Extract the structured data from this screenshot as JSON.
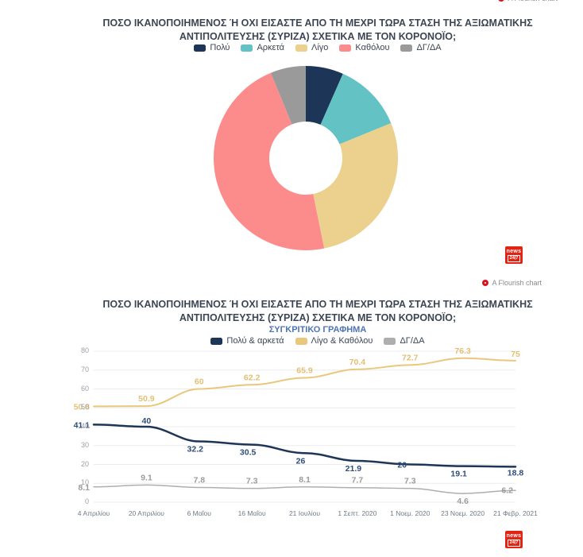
{
  "attribution_label": "A Flourish chart",
  "logo": {
    "top": "news",
    "bottom": "24|7"
  },
  "chart_data": [
    {
      "type": "pie",
      "donut": true,
      "title": "ΠΟΣΟ ΙΚΑΝΟΠΟΙΗΜΕΝΟΣ Ή ΟΧΙ ΕΙΣΑΣΤΕ ΑΠΟ ΤΗ ΜΕΧΡΙ ΤΩΡΑ ΣΤΑΣΗ ΤΗΣ ΑΞΙΩΜΑΤΙΚΗΣ ΑΝΤΙΠΟΛΙΤΕΥΣΗΣ (ΣΥΡΙΖΑ) ΣΧΕΤΙΚΑ ΜΕ ΤΟΝ ΚΟΡΟΝΟΪΟ;",
      "title_lines": [
        "ΠΟΣΟ ΙΚΑΝΟΠΟΙΗΜΕΝΟΣ Ή ΟΧΙ ΕΙΣΑΣΤΕ ΑΠΟ ΤΗ ΜΕΧΡΙ ΤΩΡΑ ΣΤΑΣΗ ΤΗΣ ΑΞΙΩΜΑΤΙΚΗΣ",
        "ΑΝΤΙΠΟΛΙΤΕΥΣΗΣ (ΣΥΡΙΖΑ) ΣΧΕΤΙΚΑ ΜΕ ΤΟΝ ΚΟΡΟΝΟΪΟ;"
      ],
      "labels": [
        "Πολύ",
        "Αρκετά",
        "Λίγο",
        "Καθόλου",
        "ΔΓ/ΔΑ"
      ],
      "values": [
        6.6,
        12.2,
        28,
        47,
        6.2
      ],
      "colors": [
        "#1d3557",
        "#63c3c4",
        "#ecd08e",
        "#fc8c8c",
        "#9a9a9a"
      ],
      "legend_position": "top"
    },
    {
      "type": "line",
      "title": "ΠΟΣΟ ΙΚΑΝΟΠΟΙΗΜΕΝΟΣ Ή ΟΧΙ ΕΙΣΑΣΤΕ ΑΠΟ ΤΗ ΜΕΧΡΙ ΤΩΡΑ ΣΤΑΣΗ ΤΗΣ ΑΞΙΩΜΑΤΙΚΗΣ ΑΝΤΙΠΟΛΙΤΕΥΣΗΣ (ΣΥΡΙΖΑ) ΣΧΕΤΙΚΑ ΜΕ ΤΟΝ ΚΟΡΟΝΟΪΟ;",
      "title_lines": [
        "ΠΟΣΟ ΙΚΑΝΟΠΟΙΗΜΕΝΟΣ Ή ΟΧΙ ΕΙΣΑΣΤΕ ΑΠΟ ΤΗ ΜΕΧΡΙ ΤΩΡΑ ΣΤΑΣΗ ΤΗΣ ΑΞΙΩΜΑΤΙΚΗΣ",
        "ΑΝΤΙΠΟΛΙΤΕΥΣΗΣ (ΣΥΡΙΖΑ) ΣΧΕΤΙΚΑ ΜΕ ΤΟΝ ΚΟΡΟΝΟΪΟ;"
      ],
      "subtitle": "ΣΥΓΚΡΙΤΙΚΟ ΓΡΑΦΗΜΑ",
      "categories": [
        "4 Απριλίου",
        "20 Απριλίου",
        "6 Μαΐου",
        "16 Μαΐου",
        "21 Ιουλίου",
        "1 Σεπτ. 2020",
        "1 Νοεμ. 2020",
        "23 Νοεμ. 2020",
        "21 Φεβρ. 2021"
      ],
      "series": [
        {
          "name": "Πολύ & αρκετά",
          "color": "#1d3557",
          "label_color": "#2e4d77",
          "values": [
            41.1,
            40,
            32.2,
            30.5,
            26,
            21.9,
            20,
            19.1,
            18.8
          ]
        },
        {
          "name": "Λίγο & Καθόλου",
          "color": "#e9c87d",
          "label_color": "#e2bf74",
          "values": [
            50.8,
            50.9,
            60,
            62.2,
            65.9,
            70.4,
            72.7,
            76.3,
            75
          ]
        },
        {
          "name": "ΔΓ/ΔΑ",
          "color": "#aeaeae",
          "label_color": "#9b9b9b",
          "values": [
            8.1,
            9.1,
            7.8,
            7.3,
            8.1,
            7.7,
            7.3,
            4.6,
            6.2
          ]
        }
      ],
      "ylim": [
        0,
        80
      ],
      "yticks": [
        0,
        10,
        20,
        30,
        40,
        50,
        60,
        70,
        80
      ],
      "grid": true,
      "legend_position": "top"
    }
  ]
}
